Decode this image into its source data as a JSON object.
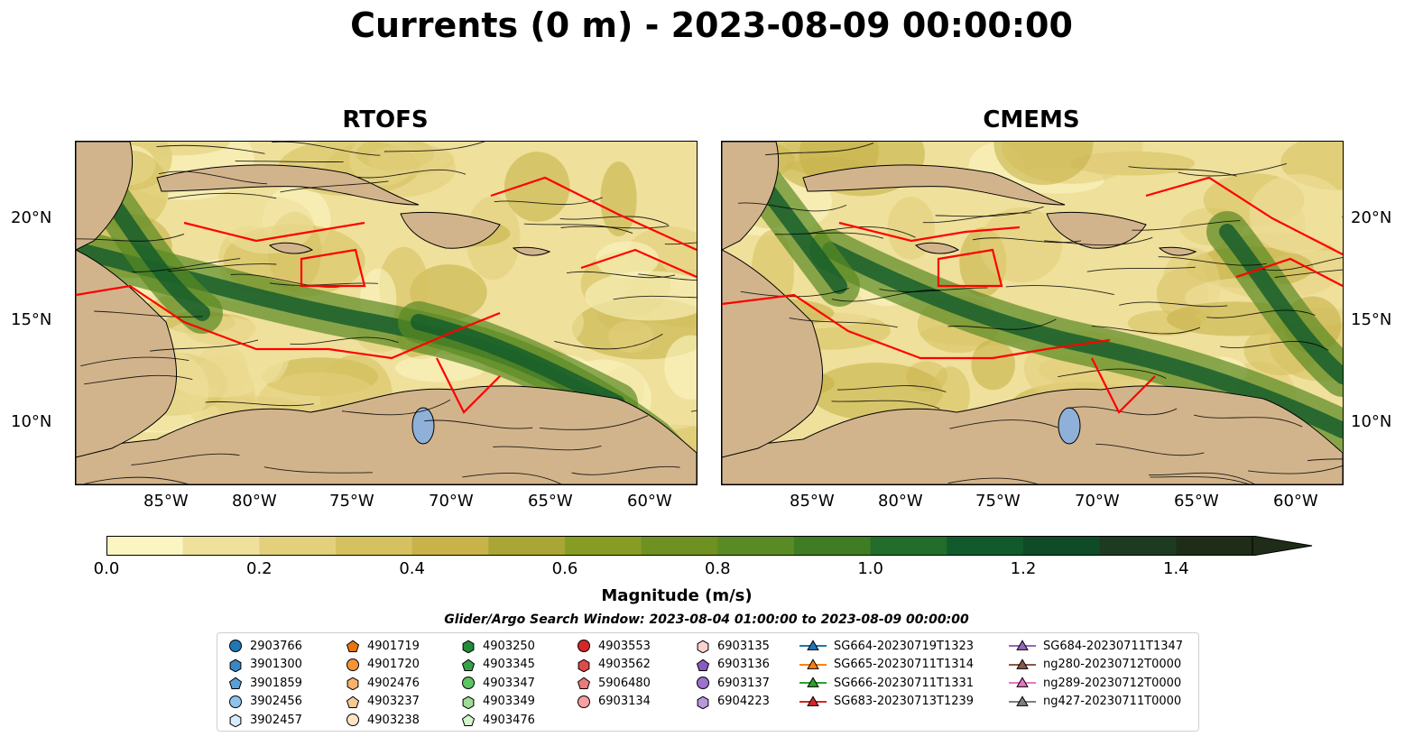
{
  "title": "Currents (0 m) - 2023-08-09 00:00:00",
  "panels": [
    {
      "title": "RTOFS"
    },
    {
      "title": "CMEMS"
    }
  ],
  "axes": {
    "lon_ticks": [
      "85°W",
      "80°W",
      "75°W",
      "70°W",
      "65°W",
      "60°W"
    ],
    "lat_ticks": [
      "20°N",
      "15°N",
      "10°N"
    ]
  },
  "colorbar": {
    "label": "Magnitude (m/s)",
    "ticks": [
      "0.0",
      "0.2",
      "0.4",
      "0.6",
      "0.8",
      "1.0",
      "1.2",
      "1.4"
    ],
    "range": [
      0.0,
      1.5
    ],
    "extend": "max",
    "colors": [
      "#fbf5c1",
      "#efe09b",
      "#e3cf7c",
      "#d6c160",
      "#c7b34a",
      "#a9a635",
      "#879c23",
      "#6e9122",
      "#5a8a23",
      "#3f7c24",
      "#226c2c",
      "#115a2b",
      "#0f4b26",
      "#1d3b20",
      "#1f2d18"
    ]
  },
  "search_window": "Glider/Argo Search Window: 2023-08-04 01:00:00 to 2023-08-09 00:00:00",
  "map_colors": {
    "land": "#d2b48c",
    "eez_lines": "#ff0000",
    "rivers_lakes": "#8fb0d8"
  },
  "legend": {
    "columns": [
      [
        {
          "label": "2903766",
          "marker": "circle",
          "color": "#1f77b4"
        },
        {
          "label": "3901300",
          "marker": "hexagon",
          "color": "#3b87c4"
        },
        {
          "label": "3901859",
          "marker": "pentagon",
          "color": "#5a9fd6"
        },
        {
          "label": "3902456",
          "marker": "circle",
          "color": "#8fc3ee"
        },
        {
          "label": "3902457",
          "marker": "hexagon",
          "color": "#d7ecfb"
        }
      ],
      [
        {
          "label": "4901719",
          "marker": "pentagon",
          "color": "#e8760f"
        },
        {
          "label": "4901720",
          "marker": "circle",
          "color": "#f59437"
        },
        {
          "label": "4902476",
          "marker": "hexagon",
          "color": "#f7b26e"
        },
        {
          "label": "4903237",
          "marker": "pentagon",
          "color": "#f8c995"
        },
        {
          "label": "4903238",
          "marker": "circle",
          "color": "#fde3c6"
        }
      ],
      [
        {
          "label": "4903250",
          "marker": "hexagon",
          "color": "#238b3a"
        },
        {
          "label": "4903345",
          "marker": "pentagon",
          "color": "#36a148"
        },
        {
          "label": "4903347",
          "marker": "circle",
          "color": "#5cc463"
        },
        {
          "label": "4903349",
          "marker": "hexagon",
          "color": "#9ddc96"
        },
        {
          "label": "4903476",
          "marker": "pentagon",
          "color": "#d5f5cf"
        }
      ],
      [
        {
          "label": "4903553",
          "marker": "circle",
          "color": "#d62728"
        },
        {
          "label": "4903562",
          "marker": "hexagon",
          "color": "#df4a4c"
        },
        {
          "label": "5906480",
          "marker": "pentagon",
          "color": "#ec7a7b"
        },
        {
          "label": "6903134",
          "marker": "circle",
          "color": "#f6a09f"
        }
      ],
      [
        {
          "label": "6903135",
          "marker": "hexagon",
          "color": "#fbd1d0"
        },
        {
          "label": "6903136",
          "marker": "pentagon",
          "color": "#8a5cc0"
        },
        {
          "label": "6903137",
          "marker": "circle",
          "color": "#9c72cd"
        },
        {
          "label": "6904223",
          "marker": "hexagon",
          "color": "#b797de"
        }
      ],
      [
        {
          "label": "SG664-20230719T1323",
          "marker": "triangle",
          "color": "#1f77b4"
        },
        {
          "label": "SG665-20230711T1314",
          "marker": "triangle",
          "color": "#ff7f0e"
        },
        {
          "label": "SG666-20230711T1331",
          "marker": "triangle",
          "color": "#2ca02c"
        },
        {
          "label": "SG683-20230713T1239",
          "marker": "triangle",
          "color": "#d62728"
        }
      ],
      [
        {
          "label": "SG684-20230711T1347",
          "marker": "triangle",
          "color": "#9467bd"
        },
        {
          "label": "ng280-20230712T0000",
          "marker": "triangle",
          "color": "#8c564b"
        },
        {
          "label": "ng289-20230712T0000",
          "marker": "triangle",
          "color": "#e377c2"
        },
        {
          "label": "ng427-20230711T0000",
          "marker": "triangle",
          "color": "#7f7f7f"
        }
      ]
    ]
  }
}
